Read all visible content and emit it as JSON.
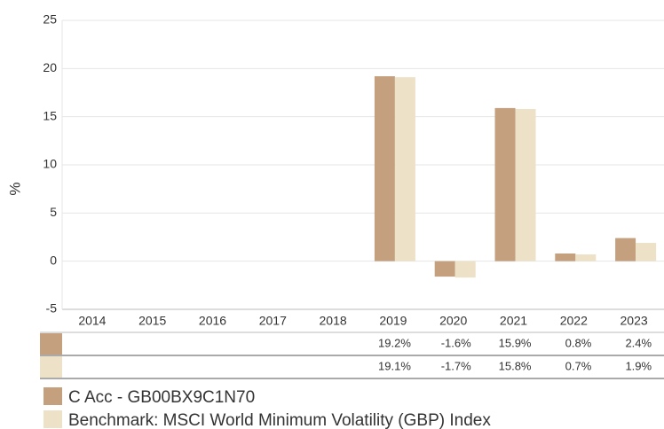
{
  "chart_data": {
    "type": "bar",
    "y_label": "%",
    "categories": [
      "2014",
      "2015",
      "2016",
      "2017",
      "2018",
      "2019",
      "2020",
      "2021",
      "2022",
      "2023"
    ],
    "series": [
      {
        "name": "C Acc - GB00BX9C1N70",
        "color": "#c4a07f",
        "values": [
          null,
          null,
          null,
          null,
          null,
          19.2,
          -1.6,
          15.9,
          0.8,
          2.4
        ],
        "value_labels": [
          null,
          null,
          null,
          null,
          null,
          "19.2%",
          "-1.6%",
          "15.9%",
          "0.8%",
          "2.4%"
        ]
      },
      {
        "name": "Benchmark: MSCI World Minimum Volatility (GBP) Index",
        "color": "#ede1c7",
        "values": [
          null,
          null,
          null,
          null,
          null,
          19.1,
          -1.7,
          15.8,
          0.7,
          1.9
        ],
        "value_labels": [
          null,
          null,
          null,
          null,
          null,
          "19.1%",
          "-1.7%",
          "15.8%",
          "0.7%",
          "1.9%"
        ]
      }
    ],
    "ylim": [
      -5,
      25
    ],
    "yticks": [
      -5,
      0,
      5,
      10,
      15,
      20,
      25
    ],
    "grid": true
  }
}
